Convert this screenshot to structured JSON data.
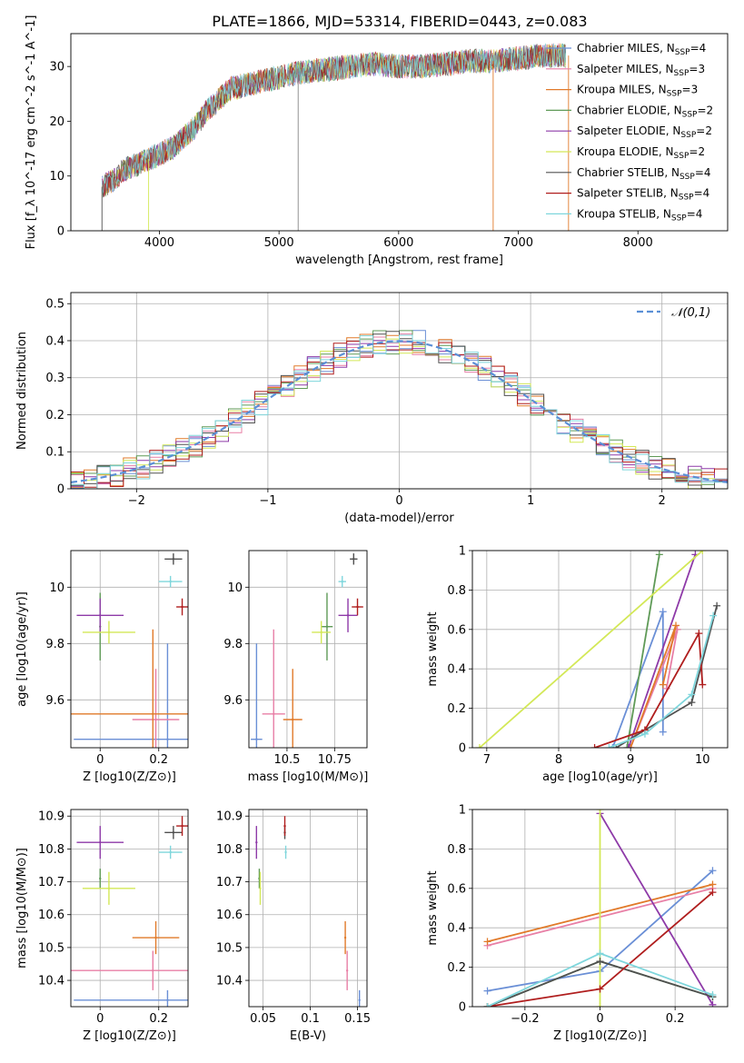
{
  "figure": {
    "title": "PLATE=1866, MJD=53314, FIBERID=0443, z=0.083"
  },
  "model_series": [
    {
      "name": "Chabrier MILES",
      "nssp": "4",
      "color": "#6a8fd6"
    },
    {
      "name": "Salpeter MILES",
      "nssp": "3",
      "color": "#e87fa6"
    },
    {
      "name": "Kroupa MILES",
      "nssp": "3",
      "color": "#e17a2a"
    },
    {
      "name": "Chabrier ELODIE",
      "nssp": "2",
      "color": "#5f9a57"
    },
    {
      "name": "Salpeter ELODIE",
      "nssp": "2",
      "color": "#8e3aa8"
    },
    {
      "name": "Kroupa ELODIE",
      "nssp": "2",
      "color": "#d3e857"
    },
    {
      "name": "Chabrier STELIB",
      "nssp": "4",
      "color": "#505050"
    },
    {
      "name": "Salpeter STELIB",
      "nssp": "4",
      "color": "#b01e1e"
    },
    {
      "name": "Kroupa STELIB",
      "nssp": "4",
      "color": "#7fd6dc"
    }
  ],
  "chart_data": [
    {
      "type": "line",
      "id": "spectrum",
      "xlabel": "wavelength [Angstrom, rest frame]",
      "ylabel": "Flux [f_λ 10^-17 erg cm^-2 s^-1 A^-1]",
      "xlim": [
        3260,
        8750
      ],
      "ylim": [
        0,
        36
      ],
      "xticks": [
        4000,
        5000,
        6000,
        7000,
        8000
      ],
      "yticks": [
        0,
        10,
        20,
        30
      ],
      "grid": false,
      "legend": "top-right",
      "continuum_x": [
        3520,
        3600,
        3700,
        3800,
        3900,
        4000,
        4100,
        4200,
        4300,
        4400,
        4500,
        4600,
        4800,
        5000,
        5200,
        5400,
        5600,
        5800,
        6000,
        6200,
        6400,
        6600,
        6800,
        7000,
        7200,
        7400
      ],
      "continuum_y": [
        8,
        9,
        11,
        12,
        13,
        14,
        15,
        17,
        19,
        22,
        24,
        26,
        27,
        28,
        29,
        29.5,
        30,
        30.5,
        30,
        30,
        30.5,
        31,
        31,
        31.5,
        32,
        32
      ]
    },
    {
      "type": "histogram",
      "id": "residuals",
      "xlabel": "(data-model)/error",
      "ylabel": "Normed distribution",
      "xlim": [
        -2.5,
        2.5
      ],
      "ylim": [
        0,
        0.53
      ],
      "xticks": [
        -2,
        -1,
        0,
        1,
        2
      ],
      "yticks": [
        0.0,
        0.1,
        0.2,
        0.3,
        0.4,
        0.5
      ],
      "grid": true,
      "legend": "top-right",
      "reference_curve": {
        "name": "𝒩(0,1)",
        "color": "#5b8fd6"
      },
      "bin_width": 0.1
    },
    {
      "type": "scatter",
      "id": "age-vs-z",
      "xlabel": "Z [log10(Z/Z⊙)]",
      "ylabel": "age  [log10(age/yr)]",
      "xlim": [
        -0.1,
        0.3
      ],
      "ylim": [
        9.43,
        10.13
      ],
      "xticks": [
        0.0,
        0.2
      ],
      "yticks": [
        9.6,
        9.8,
        10.0
      ],
      "grid": true,
      "points": [
        {
          "x": 0.23,
          "y": 9.46,
          "xerr": 0.32,
          "yerr": 0.34
        },
        {
          "x": 0.19,
          "y": 9.53,
          "xerr": 0.08,
          "yerr": 0.18
        },
        {
          "x": 0.18,
          "y": 9.55,
          "xerr": 0.28,
          "yerr": 0.3
        },
        {
          "x": 0.0,
          "y": 9.86,
          "xerr": 0.0,
          "yerr": 0.12
        },
        {
          "x": 0.0,
          "y": 9.9,
          "xerr": 0.08,
          "yerr": 0.06
        },
        {
          "x": 0.03,
          "y": 9.84,
          "xerr": 0.09,
          "yerr": 0.04
        },
        {
          "x": 0.25,
          "y": 10.1,
          "xerr": 0.03,
          "yerr": 0.02
        },
        {
          "x": 0.28,
          "y": 9.93,
          "xerr": 0.02,
          "yerr": 0.03
        },
        {
          "x": 0.24,
          "y": 10.02,
          "xerr": 0.04,
          "yerr": 0.02
        }
      ]
    },
    {
      "type": "scatter",
      "id": "age-vs-mass",
      "xlabel": "mass [log10(M/M⊙)]",
      "ylabel": "",
      "xlim": [
        10.3,
        10.92
      ],
      "ylim": [
        9.43,
        10.13
      ],
      "xticks": [
        10.5,
        10.75
      ],
      "yticks": [
        9.6,
        9.8,
        10.0
      ],
      "grid": true,
      "points": [
        {
          "x": 10.34,
          "y": 9.46,
          "xerr": 0.03,
          "yerr": 0.34
        },
        {
          "x": 10.43,
          "y": 9.55,
          "xerr": 0.06,
          "yerr": 0.3
        },
        {
          "x": 10.53,
          "y": 9.53,
          "xerr": 0.05,
          "yerr": 0.18
        },
        {
          "x": 10.71,
          "y": 9.86,
          "xerr": 0.03,
          "yerr": 0.12
        },
        {
          "x": 10.82,
          "y": 9.9,
          "xerr": 0.05,
          "yerr": 0.06
        },
        {
          "x": 10.68,
          "y": 9.84,
          "xerr": 0.05,
          "yerr": 0.04
        },
        {
          "x": 10.85,
          "y": 10.1,
          "xerr": 0.02,
          "yerr": 0.02
        },
        {
          "x": 10.87,
          "y": 9.93,
          "xerr": 0.03,
          "yerr": 0.03
        },
        {
          "x": 10.79,
          "y": 10.02,
          "xerr": 0.02,
          "yerr": 0.02
        }
      ]
    },
    {
      "type": "line",
      "id": "mass-weight-vs-age",
      "xlabel": "age  [log10(age/yr)]",
      "ylabel": "mass weight",
      "xlim": [
        6.8,
        10.35
      ],
      "ylim": [
        0,
        1.0
      ],
      "xticks": [
        7,
        8,
        9,
        10
      ],
      "yticks": [
        0.0,
        0.2,
        0.4,
        0.6,
        0.8,
        1.0
      ],
      "grid": true,
      "series": [
        {
          "x": [
            8.75,
            9.45,
            9.45
          ],
          "y": [
            0.0,
            0.69,
            0.08
          ]
        },
        {
          "x": [
            9.0,
            9.65,
            9.5
          ],
          "y": [
            0.0,
            0.6,
            0.3
          ]
        },
        {
          "x": [
            9.0,
            9.63,
            9.45
          ],
          "y": [
            0.0,
            0.62,
            0.32
          ]
        },
        {
          "x": [
            8.95,
            9.4
          ],
          "y": [
            0.0,
            0.98
          ]
        },
        {
          "x": [
            8.97,
            9.9
          ],
          "y": [
            0.0,
            0.98
          ]
        },
        {
          "x": [
            6.9,
            10.0
          ],
          "y": [
            0.0,
            1.0
          ]
        },
        {
          "x": [
            8.8,
            9.2,
            9.85,
            10.2
          ],
          "y": [
            0.0,
            0.09,
            0.23,
            0.72
          ]
        },
        {
          "x": [
            8.5,
            9.2,
            9.95,
            10.0
          ],
          "y": [
            0.0,
            0.09,
            0.58,
            0.32
          ]
        },
        {
          "x": [
            8.7,
            9.2,
            9.85,
            10.15
          ],
          "y": [
            0.0,
            0.07,
            0.27,
            0.67
          ]
        }
      ]
    },
    {
      "type": "scatter",
      "id": "mass-vs-z",
      "xlabel": "Z [log10(Z/Z⊙)]",
      "ylabel": "mass [log10(M/M⊙)]",
      "xlim": [
        -0.1,
        0.3
      ],
      "ylim": [
        10.32,
        10.92
      ],
      "xticks": [
        0.0,
        0.2
      ],
      "yticks": [
        10.4,
        10.5,
        10.6,
        10.7,
        10.8,
        10.9
      ],
      "grid": true,
      "points": [
        {
          "x": 0.23,
          "y": 10.34,
          "xerr": 0.32,
          "yerr": 0.03
        },
        {
          "x": 0.18,
          "y": 10.43,
          "xerr": 0.28,
          "yerr": 0.06
        },
        {
          "x": 0.19,
          "y": 10.53,
          "xerr": 0.08,
          "yerr": 0.05
        },
        {
          "x": 0.0,
          "y": 10.71,
          "xerr": 0.0,
          "yerr": 0.03
        },
        {
          "x": 0.0,
          "y": 10.82,
          "xerr": 0.08,
          "yerr": 0.05
        },
        {
          "x": 0.03,
          "y": 10.68,
          "xerr": 0.09,
          "yerr": 0.05
        },
        {
          "x": 0.25,
          "y": 10.85,
          "xerr": 0.03,
          "yerr": 0.02
        },
        {
          "x": 0.28,
          "y": 10.87,
          "xerr": 0.02,
          "yerr": 0.03
        },
        {
          "x": 0.24,
          "y": 10.79,
          "xerr": 0.04,
          "yerr": 0.02
        }
      ]
    },
    {
      "type": "scatter",
      "id": "mass-vs-ebv",
      "xlabel": "E(B-V)",
      "ylabel": "",
      "xlim": [
        0.035,
        0.16
      ],
      "ylim": [
        10.32,
        10.92
      ],
      "xticks": [
        0.05,
        0.1,
        0.15
      ],
      "yticks": [
        10.4,
        10.5,
        10.6,
        10.7,
        10.8,
        10.9
      ],
      "grid": true,
      "points": [
        {
          "x": 0.152,
          "y": 10.34,
          "xerr": 0.0,
          "yerr": 0.03
        },
        {
          "x": 0.139,
          "y": 10.43,
          "xerr": 0.0,
          "yerr": 0.06
        },
        {
          "x": 0.137,
          "y": 10.53,
          "xerr": 0.0,
          "yerr": 0.05
        },
        {
          "x": 0.046,
          "y": 10.71,
          "xerr": 0.0,
          "yerr": 0.03
        },
        {
          "x": 0.043,
          "y": 10.82,
          "xerr": 0.0,
          "yerr": 0.05
        },
        {
          "x": 0.047,
          "y": 10.68,
          "xerr": 0.0,
          "yerr": 0.05
        },
        {
          "x": 0.073,
          "y": 10.85,
          "xerr": 0.0,
          "yerr": 0.02
        },
        {
          "x": 0.073,
          "y": 10.87,
          "xerr": 0.0,
          "yerr": 0.03
        },
        {
          "x": 0.074,
          "y": 10.79,
          "xerr": 0.0,
          "yerr": 0.02
        }
      ]
    },
    {
      "type": "line",
      "id": "mass-weight-vs-z",
      "xlabel": "Z [log10(Z/Z⊙)]",
      "ylabel": "mass weight",
      "xlim": [
        -0.34,
        0.34
      ],
      "ylim": [
        0,
        1.0
      ],
      "xticks": [
        -0.2,
        0.0,
        0.2
      ],
      "yticks": [
        0.0,
        0.2,
        0.4,
        0.6,
        0.8,
        1.0
      ],
      "grid": true,
      "series": [
        {
          "x": [
            -0.3,
            0.0,
            0.3
          ],
          "y": [
            0.08,
            0.18,
            0.69
          ]
        },
        {
          "x": [
            -0.3,
            0.3
          ],
          "y": [
            0.31,
            0.6
          ]
        },
        {
          "x": [
            -0.3,
            0.3
          ],
          "y": [
            0.33,
            0.62
          ]
        },
        {
          "x": [
            -0.3,
            0.0,
            0.3
          ],
          "y": [
            0.0,
            0.23,
            0.05
          ]
        },
        {
          "x": [
            0.0,
            0.3
          ],
          "y": [
            0.98,
            0.01
          ]
        },
        {
          "x": [
            0.0,
            0.0
          ],
          "y": [
            0.0,
            1.0
          ]
        },
        {
          "x": [
            -0.3,
            0.0,
            0.3
          ],
          "y": [
            0.0,
            0.23,
            0.05
          ]
        },
        {
          "x": [
            -0.3,
            0.0,
            0.3
          ],
          "y": [
            0.0,
            0.09,
            0.58
          ]
        },
        {
          "x": [
            -0.3,
            0.0,
            0.3
          ],
          "y": [
            0.0,
            0.27,
            0.06
          ]
        }
      ]
    }
  ]
}
